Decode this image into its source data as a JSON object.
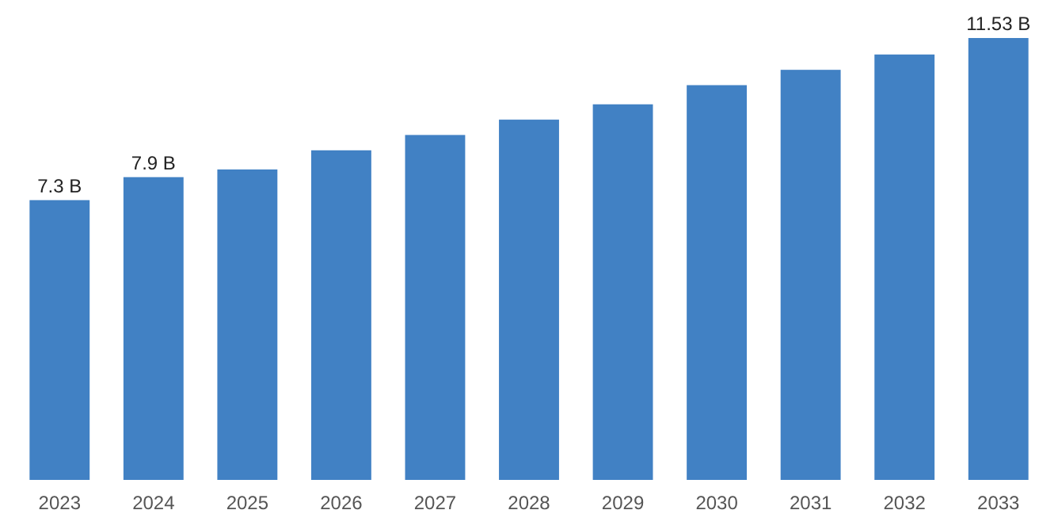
{
  "chart_data": {
    "type": "bar",
    "categories": [
      "2023",
      "2024",
      "2025",
      "2026",
      "2027",
      "2028",
      "2029",
      "2030",
      "2031",
      "2032",
      "2033"
    ],
    "values": [
      7.3,
      7.9,
      8.1,
      8.6,
      9.0,
      9.4,
      9.8,
      10.3,
      10.7,
      11.1,
      11.53
    ],
    "value_labels": [
      "7.3 B",
      "7.9 B",
      null,
      null,
      null,
      null,
      null,
      null,
      null,
      null,
      "11.53 B"
    ],
    "color": "#4181c4"
  }
}
